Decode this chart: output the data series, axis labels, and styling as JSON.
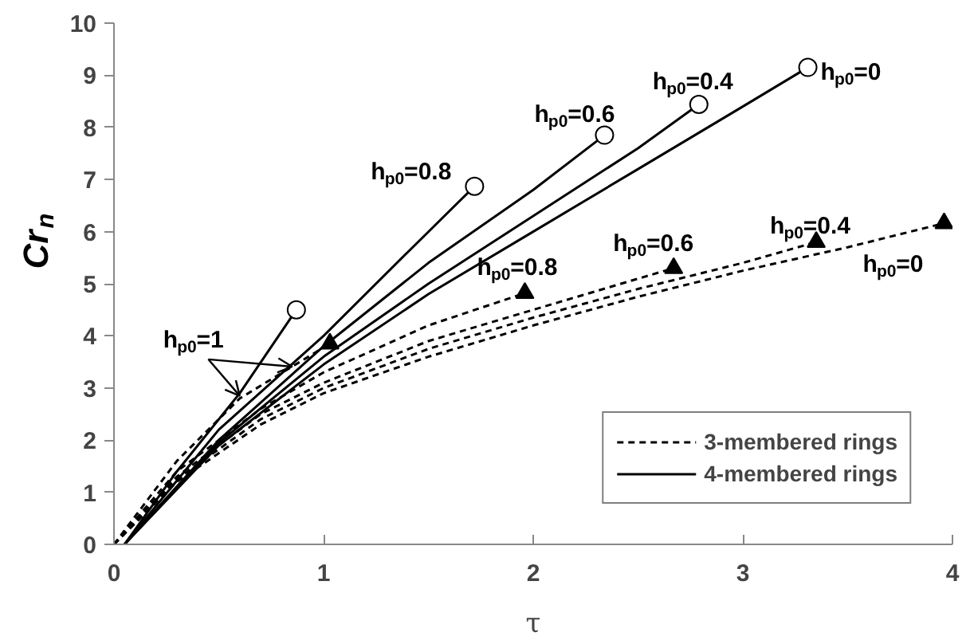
{
  "chart_data": {
    "type": "line",
    "xlabel": "τ",
    "ylabel": "Cr$_{n}$",
    "xlim": [
      0,
      4
    ],
    "ylim": [
      0,
      10
    ],
    "xticks": [
      0,
      1,
      2,
      3,
      4
    ],
    "yticks": [
      0,
      1,
      2,
      3,
      4,
      5,
      6,
      7,
      8,
      9,
      10
    ],
    "grid": false,
    "legend": "bottom right",
    "series": [
      {
        "name": "3-membered rings",
        "color": "#000000",
        "line_style": "dashed",
        "x": [
          0,
          0.3,
          0.6,
          1.03
        ],
        "values": [
          0,
          1.6,
          2.8,
          3.85
        ]
      },
      {
        "color": "#000000",
        "line_style": "dashed",
        "x": [
          0,
          0.3,
          0.7,
          1,
          1.5,
          1.96
        ],
        "values": [
          0,
          1.4,
          2.6,
          3.3,
          4.2,
          4.82
        ]
      },
      {
        "color": "#000000",
        "line_style": "dashed",
        "x": [
          0,
          0.3,
          0.7,
          1,
          1.5,
          2,
          2.67
        ],
        "values": [
          0,
          1.3,
          2.5,
          3.1,
          3.9,
          4.5,
          5.3
        ]
      },
      {
        "color": "#000000",
        "line_style": "dashed",
        "x": [
          0,
          0.3,
          0.7,
          1,
          1.5,
          2,
          2.5,
          3,
          3.35
        ],
        "values": [
          0,
          1.25,
          2.4,
          3.0,
          3.75,
          4.35,
          4.9,
          5.4,
          5.8
        ]
      },
      {
        "color": "#000000",
        "line_style": "dashed",
        "x": [
          0,
          0.3,
          0.7,
          1,
          1.5,
          2,
          2.5,
          3,
          3.5,
          3.96
        ],
        "values": [
          0,
          1.2,
          2.3,
          2.9,
          3.6,
          4.2,
          4.75,
          5.25,
          5.7,
          6.16
        ]
      },
      {
        "name": "4-membered rings",
        "color": "#000000",
        "line_style": "solid",
        "x": [
          0.05,
          0.3,
          0.6,
          0.87
        ],
        "values": [
          0,
          1.4,
          2.9,
          4.5
        ]
      },
      {
        "color": "#000000",
        "line_style": "solid",
        "x": [
          0.05,
          0.5,
          1,
          1.4,
          1.72
        ],
        "values": [
          0,
          2.2,
          4.0,
          5.6,
          6.87
        ]
      },
      {
        "color": "#000000",
        "line_style": "solid",
        "x": [
          0.05,
          0.5,
          1,
          1.5,
          2,
          2.34
        ],
        "values": [
          0,
          2.0,
          3.8,
          5.4,
          6.8,
          7.85
        ]
      },
      {
        "color": "#000000",
        "line_style": "solid",
        "x": [
          0.05,
          0.5,
          1,
          1.5,
          2,
          2.5,
          2.79
        ],
        "values": [
          0,
          1.95,
          3.6,
          5.0,
          6.3,
          7.6,
          8.44
        ]
      },
      {
        "color": "#000000",
        "line_style": "solid",
        "x": [
          0.05,
          0.5,
          1,
          1.5,
          2,
          2.5,
          3,
          3.31
        ],
        "values": [
          0,
          1.9,
          3.45,
          4.8,
          6.0,
          7.2,
          8.4,
          9.15
        ]
      },
      {
        "type": "scatter",
        "marker": "triangle",
        "color": "#000000",
        "x": [
          1.03,
          1.96,
          2.67,
          3.35,
          3.96
        ],
        "values": [
          3.85,
          4.82,
          5.3,
          5.8,
          6.16
        ]
      },
      {
        "type": "scatter",
        "marker": "circle",
        "color": "#ffffff",
        "x": [
          0.87,
          1.72,
          2.34,
          2.79,
          3.31
        ],
        "values": [
          4.5,
          6.87,
          7.85,
          8.44,
          9.15
        ]
      }
    ],
    "annotations": [
      {
        "text": "h$_{p0}$=1",
        "x": 0.6,
        "y": 2.85
      },
      {
        "text": "h$_{p0}$=0.8",
        "x": 1.72,
        "y": 6.87
      },
      {
        "text": "h$_{p0}$=0.6",
        "x": 2.34,
        "y": 7.85
      },
      {
        "text": "h$_{p0}$=0.4",
        "x": 2.79,
        "y": 8.44
      },
      {
        "text": "h$_{p0}$=0",
        "x": 3.31,
        "y": 9.15
      },
      {
        "text": "h$_{p0}$=0.8",
        "x": 1.96,
        "y": 4.82
      },
      {
        "text": "h$_{p0}$=0.6",
        "x": 2.67,
        "y": 5.3
      },
      {
        "text": "h$_{p0}$=0.4",
        "x": 3.35,
        "y": 5.8
      },
      {
        "text": "h$_{p0}$=0",
        "x": 3.96,
        "y": 6.16
      }
    ]
  }
}
